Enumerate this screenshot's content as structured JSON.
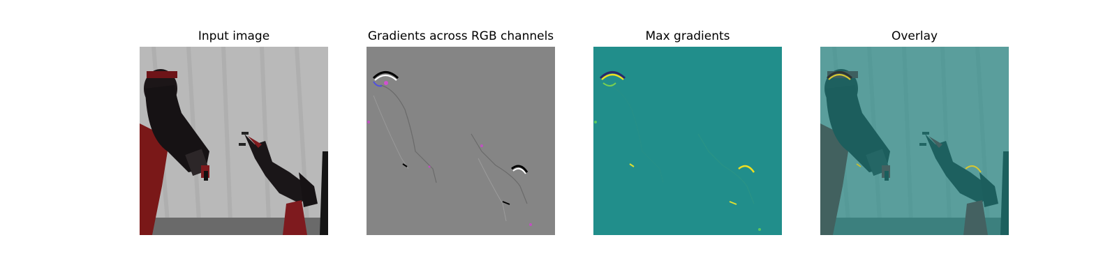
{
  "panels": [
    {
      "title": "Input image"
    },
    {
      "title": "Gradients across RGB channels"
    },
    {
      "title": "Max gradients"
    },
    {
      "title": "Overlay"
    }
  ]
}
